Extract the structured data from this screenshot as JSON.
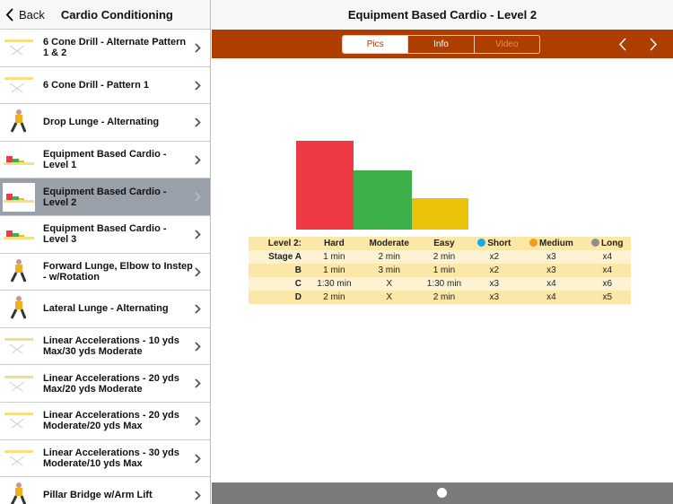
{
  "sidebar": {
    "back_label": "Back",
    "title": "Cardio Conditioning",
    "items": [
      {
        "label": "6 Cone Drill - Alternate Pattern 1 & 2",
        "thumb": "cone-drill"
      },
      {
        "label": "6 Cone Drill - Pattern 1",
        "thumb": "cone-drill"
      },
      {
        "label": "Drop Lunge - Alternating",
        "thumb": "person"
      },
      {
        "label": "Equipment Based Cardio - Level 1",
        "thumb": "bars"
      },
      {
        "label": "Equipment Based Cardio - Level 2",
        "thumb": "bars",
        "selected": true
      },
      {
        "label": "Equipment Based Cardio - Level 3",
        "thumb": "bars"
      },
      {
        "label": "Forward Lunge, Elbow to Instep - w/Rotation",
        "thumb": "person"
      },
      {
        "label": "Lateral Lunge - Alternating",
        "thumb": "person"
      },
      {
        "label": "Linear Accelerations - 10 yds Max/30 yds Moderate",
        "thumb": "cones"
      },
      {
        "label": "Linear Accelerations - 20 yds Max/20 yds Moderate",
        "thumb": "cones"
      },
      {
        "label": "Linear Accelerations - 20 yds Moderate/20 yds Max",
        "thumb": "cones"
      },
      {
        "label": "Linear Accelerations - 30 yds Moderate/10 yds Max",
        "thumb": "cones"
      },
      {
        "label": "Pillar Bridge w/Arm Lift",
        "thumb": "person"
      }
    ]
  },
  "main": {
    "title": "Equipment Based Cardio - Level 2",
    "tabs": [
      {
        "label": "Pics",
        "active": true
      },
      {
        "label": "Info"
      },
      {
        "label": "Video",
        "disabled": true
      }
    ],
    "colors": {
      "accent": "#ae3d00",
      "hard": "#ef3a45",
      "moderate": "#3db04a",
      "easy": "#eac20a",
      "short": "#1aa7e6",
      "medium": "#f59a1e",
      "long": "#8e8e8e"
    },
    "table": {
      "header": [
        "Level 2:",
        "Hard",
        "Moderate",
        "Easy",
        "Short",
        "Medium",
        "Long"
      ],
      "rows": [
        [
          "Stage A",
          "1 min",
          "2 min",
          "2 min",
          "x2",
          "x3",
          "x4"
        ],
        [
          "B",
          "1 min",
          "3 min",
          "1 min",
          "x2",
          "x3",
          "x4"
        ],
        [
          "C",
          "1:30 min",
          "X",
          "1:30 min",
          "x3",
          "x4",
          "x6"
        ],
        [
          "D",
          "2 min",
          "X",
          "2 min",
          "x3",
          "x4",
          "x5"
        ]
      ]
    },
    "page_indicator": {
      "current": 1,
      "total": 1
    }
  }
}
